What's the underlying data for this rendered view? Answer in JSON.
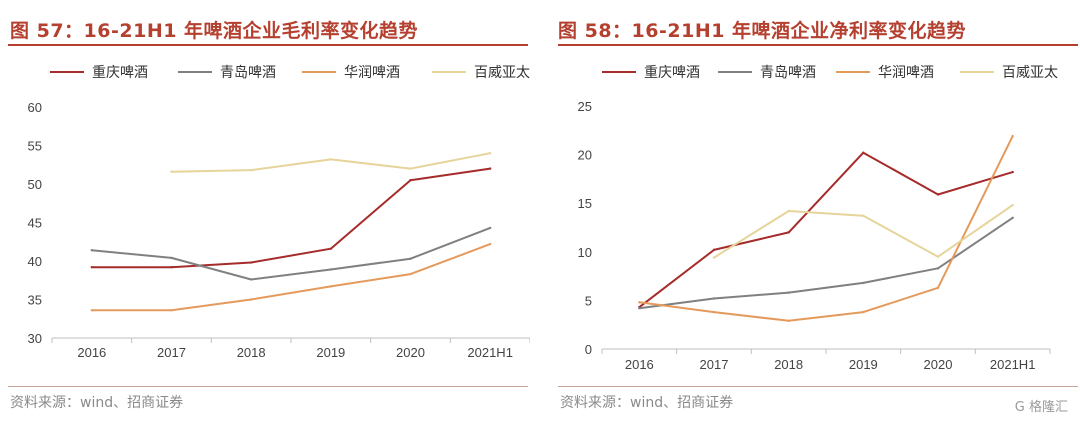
{
  "chart_data": [
    {
      "type": "line",
      "title": "图 57：16-21H1 年啤酒企业毛利率变化趋势",
      "categories": [
        "2016",
        "2017",
        "2018",
        "2019",
        "2020",
        "2021H1"
      ],
      "ylim": [
        30,
        60
      ],
      "yticks": [
        "30",
        "35",
        "40",
        "45",
        "50",
        "55",
        "60"
      ],
      "series": [
        {
          "name": "重庆啤酒",
          "color": "#a62b2b",
          "values": [
            39.2,
            39.2,
            39.8,
            41.6,
            50.5,
            52.0
          ]
        },
        {
          "name": "青岛啤酒",
          "color": "#808080",
          "values": [
            41.4,
            40.4,
            37.6,
            38.9,
            40.3,
            44.3
          ]
        },
        {
          "name": "华润啤酒",
          "color": "#e49a5c",
          "values": [
            33.6,
            33.6,
            35.0,
            36.7,
            38.3,
            42.2
          ]
        },
        {
          "name": "百威亚太",
          "color": "#e6d49a",
          "values": [
            null,
            51.6,
            51.8,
            53.2,
            52.0,
            54.0
          ]
        }
      ],
      "legend": "top",
      "source": "资料来源：wind、招商证券"
    },
    {
      "type": "line",
      "title": "图 58：16-21H1 年啤酒企业净利率变化趋势",
      "categories": [
        "2016",
        "2017",
        "2018",
        "2019",
        "2020",
        "2021H1"
      ],
      "ylim": [
        0,
        25
      ],
      "yticks": [
        "0",
        "5",
        "10",
        "15",
        "20",
        "25"
      ],
      "series": [
        {
          "name": "重庆啤酒",
          "color": "#a62b2b",
          "values": [
            4.3,
            10.2,
            12.0,
            20.2,
            15.9,
            18.2
          ]
        },
        {
          "name": "青岛啤酒",
          "color": "#808080",
          "values": [
            4.2,
            5.2,
            5.8,
            6.8,
            8.3,
            13.5
          ]
        },
        {
          "name": "华润啤酒",
          "color": "#e49a5c",
          "values": [
            4.8,
            3.8,
            2.9,
            3.8,
            6.3,
            21.9
          ]
        },
        {
          "name": "百威亚太",
          "color": "#e6d49a",
          "values": [
            null,
            9.4,
            14.2,
            13.7,
            9.5,
            14.8
          ]
        }
      ],
      "legend": "top",
      "source": "资料来源：wind、招商证券"
    }
  ],
  "watermark": "G 格隆汇"
}
